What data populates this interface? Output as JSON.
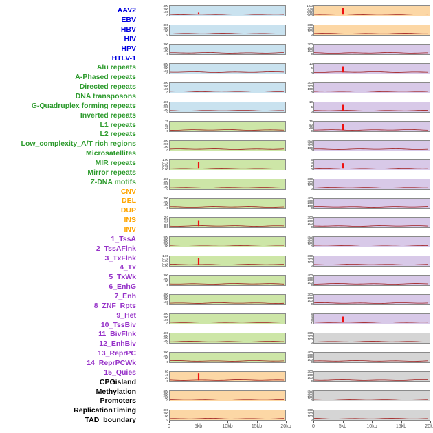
{
  "figure": {
    "groups": {
      "virus": {
        "label_color": "#0000e0",
        "strip_fill": "#c9e2ef"
      },
      "repeat": {
        "label_color": "#2e9b2e",
        "strip_fill": "#cde6a7"
      },
      "sv": {
        "label_color": "#ffa500",
        "strip_fill": "#fcd7a5"
      },
      "chromhmm": {
        "label_color": "#9632c8",
        "strip_fill": "#d8c9e8"
      },
      "other": {
        "label_color": "#000000",
        "strip_fill": "#d5d5d5"
      }
    },
    "line_colors": {
      "baseline": "#a02020",
      "spike": "#ee1111"
    }
  },
  "chart_data": {
    "type": "line",
    "description": "Grid of 44 per-feature profile strips (two columns of 22 rows). Each strip shows a dark-red profile line over a 0-20kb window; several features show a sharp red enrichment spike at 5kb.",
    "x_axis_ticks": [
      "0",
      "5kb",
      "10kb",
      "15kb",
      "20kb"
    ],
    "x_range_kb": [
      0,
      20
    ],
    "spike_position_kb": 5,
    "columns": 2,
    "rows_per_column": 22,
    "tracks": [
      {
        "name": "AAV2",
        "group": "virus",
        "column": 1,
        "row": 1,
        "y_ticks": [
          "300",
          "200",
          "100",
          "0"
        ],
        "spike": 0.35
      },
      {
        "name": "EBV",
        "group": "virus",
        "column": 1,
        "row": 2,
        "y_ticks": [
          "300",
          "200",
          "100",
          "0"
        ],
        "spike": 0
      },
      {
        "name": "HBV",
        "group": "virus",
        "column": 1,
        "row": 3,
        "y_ticks": [
          "300",
          "200",
          "100",
          "0"
        ],
        "spike": 0
      },
      {
        "name": "HIV",
        "group": "virus",
        "column": 1,
        "row": 4,
        "y_ticks": [
          "400",
          "300",
          "200",
          "100",
          "0"
        ],
        "spike": 0
      },
      {
        "name": "HPV",
        "group": "virus",
        "column": 1,
        "row": 5,
        "y_ticks": [
          "300",
          "200",
          "100",
          "0"
        ],
        "spike": 0
      },
      {
        "name": "HTLV-1",
        "group": "virus",
        "column": 1,
        "row": 6,
        "y_ticks": [
          "400",
          "300",
          "200",
          "100",
          "0"
        ],
        "spike": 0
      },
      {
        "name": "Alu repeats",
        "group": "repeat",
        "column": 1,
        "row": 7,
        "y_ticks": [
          "75",
          "50",
          "25",
          "0"
        ],
        "spike": 0
      },
      {
        "name": "A-Phased repeats",
        "group": "repeat",
        "column": 1,
        "row": 8,
        "y_ticks": [
          "300",
          "200",
          "100",
          "0"
        ],
        "spike": 0
      },
      {
        "name": "Directed repeats",
        "group": "repeat",
        "column": 1,
        "row": 9,
        "y_ticks": [
          "1.00",
          "0.75",
          "0.50",
          "0.25",
          "0.00"
        ],
        "spike": 0.85
      },
      {
        "name": "DNA transposons",
        "group": "repeat",
        "column": 1,
        "row": 10,
        "y_ticks": [
          "400",
          "300",
          "200",
          "100",
          "0"
        ],
        "spike": 0
      },
      {
        "name": "G-Quadruplex forming repeats",
        "group": "repeat",
        "column": 1,
        "row": 11,
        "y_ticks": [
          "300",
          "200",
          "100",
          "0"
        ],
        "spike": 0
      },
      {
        "name": "Inverted repeats",
        "group": "repeat",
        "column": 1,
        "row": 12,
        "y_ticks": [
          "2.0",
          "1.5",
          "1.0",
          "0.5",
          "0.0"
        ],
        "spike": 0.8
      },
      {
        "name": "L1 repeats",
        "group": "repeat",
        "column": 1,
        "row": 13,
        "y_ticks": [
          "500",
          "400",
          "300",
          "200",
          "100"
        ],
        "spike": 0
      },
      {
        "name": "L2 repeats",
        "group": "repeat",
        "column": 1,
        "row": 14,
        "y_ticks": [
          "1.00",
          "0.75",
          "0.50",
          "0.25",
          "0.00"
        ],
        "spike": 0.85
      },
      {
        "name": "Low_complexity_A/T rich regions",
        "group": "repeat",
        "column": 1,
        "row": 15,
        "y_ticks": [
          "300",
          "200",
          "100",
          "0"
        ],
        "spike": 0
      },
      {
        "name": "Microsatellites",
        "group": "repeat",
        "column": 1,
        "row": 16,
        "y_ticks": [
          "400",
          "300",
          "200",
          "100",
          "0"
        ],
        "spike": 0
      },
      {
        "name": "MIR repeats",
        "group": "repeat",
        "column": 1,
        "row": 17,
        "y_ticks": [
          "300",
          "200",
          "100",
          "0"
        ],
        "spike": 0
      },
      {
        "name": "Mirror repeats",
        "group": "repeat",
        "column": 1,
        "row": 18,
        "y_ticks": [
          "400",
          "300",
          "200",
          "100",
          "0"
        ],
        "spike": 0
      },
      {
        "name": "Z-DNA motifs",
        "group": "repeat",
        "column": 1,
        "row": 19,
        "y_ticks": [
          "300",
          "200",
          "100",
          "0"
        ],
        "spike": 0
      },
      {
        "name": "CNV",
        "group": "sv",
        "column": 1,
        "row": 20,
        "y_ticks": [
          "60",
          "40",
          "20",
          "0"
        ],
        "spike": 0.9
      },
      {
        "name": "DEL",
        "group": "sv",
        "column": 1,
        "row": 21,
        "y_ticks": [
          "400",
          "300",
          "200",
          "100",
          "0"
        ],
        "spike": 0
      },
      {
        "name": "DUP",
        "group": "sv",
        "column": 1,
        "row": 22,
        "y_ticks": [
          "300",
          "200",
          "100",
          "0"
        ],
        "spike": 0
      },
      {
        "name": "INS",
        "group": "sv",
        "column": 2,
        "row": 1,
        "y_ticks": [
          "1.00",
          "0.75",
          "0.50",
          "0.25",
          "0.00"
        ],
        "spike": 0.85
      },
      {
        "name": "INV",
        "group": "sv",
        "column": 2,
        "row": 2,
        "y_ticks": [
          "300",
          "200",
          "100",
          "0"
        ],
        "spike": 0
      },
      {
        "name": "1_TssA",
        "group": "chromhmm",
        "column": 2,
        "row": 3,
        "y_ticks": [
          "300",
          "200",
          "100",
          "0"
        ],
        "spike": 0
      },
      {
        "name": "2_TssAFlnk",
        "group": "chromhmm",
        "column": 2,
        "row": 4,
        "y_ticks": [
          "10",
          "5",
          "0"
        ],
        "spike": 0.8
      },
      {
        "name": "3_TxFlnk",
        "group": "chromhmm",
        "column": 2,
        "row": 5,
        "y_ticks": [
          "300",
          "200",
          "100",
          "0"
        ],
        "spike": 0
      },
      {
        "name": "4_Tx",
        "group": "chromhmm",
        "column": 2,
        "row": 6,
        "y_ticks": [
          "10",
          "5",
          "0"
        ],
        "spike": 0.8
      },
      {
        "name": "5_TxWk",
        "group": "chromhmm",
        "column": 2,
        "row": 7,
        "y_ticks": [
          "75",
          "50",
          "25",
          "0"
        ],
        "spike": 0.8
      },
      {
        "name": "6_EnhG",
        "group": "chromhmm",
        "column": 2,
        "row": 8,
        "y_ticks": [
          "400",
          "300",
          "200",
          "100",
          "0"
        ],
        "spike": 0
      },
      {
        "name": "7_Enh",
        "group": "chromhmm",
        "column": 2,
        "row": 9,
        "y_ticks": [
          "6",
          "4",
          "2",
          "0"
        ],
        "spike": 0.75
      },
      {
        "name": "8_ZNF_Rpts",
        "group": "chromhmm",
        "column": 2,
        "row": 10,
        "y_ticks": [
          "300",
          "200",
          "100",
          "0"
        ],
        "spike": 0
      },
      {
        "name": "9_Het",
        "group": "chromhmm",
        "column": 2,
        "row": 11,
        "y_ticks": [
          "400",
          "300",
          "200",
          "100",
          "0"
        ],
        "spike": 0
      },
      {
        "name": "10_TssBiv",
        "group": "chromhmm",
        "column": 2,
        "row": 12,
        "y_ticks": [
          "300",
          "200",
          "100",
          "0"
        ],
        "spike": 0
      },
      {
        "name": "11_BivFlnk",
        "group": "chromhmm",
        "column": 2,
        "row": 13,
        "y_ticks": [
          "400",
          "300",
          "200",
          "100",
          "0"
        ],
        "spike": 0
      },
      {
        "name": "12_EnhBiv",
        "group": "chromhmm",
        "column": 2,
        "row": 14,
        "y_ticks": [
          "300",
          "200",
          "100",
          "0"
        ],
        "spike": 0
      },
      {
        "name": "13_ReprPC",
        "group": "chromhmm",
        "column": 2,
        "row": 15,
        "y_ticks": [
          "400",
          "300",
          "200",
          "100",
          "0"
        ],
        "spike": 0
      },
      {
        "name": "14_ReprPCWk",
        "group": "chromhmm",
        "column": 2,
        "row": 16,
        "y_ticks": [
          "300",
          "200",
          "100",
          "0"
        ],
        "spike": 0
      },
      {
        "name": "15_Quies",
        "group": "chromhmm",
        "column": 2,
        "row": 17,
        "y_ticks": [
          "5",
          "4",
          "3",
          "2",
          "1"
        ],
        "spike": 0.8
      },
      {
        "name": "CPGisland",
        "group": "other",
        "column": 2,
        "row": 18,
        "y_ticks": [
          "300",
          "200",
          "100",
          "0"
        ],
        "spike": 0
      },
      {
        "name": "Methylation",
        "group": "other",
        "column": 2,
        "row": 19,
        "y_ticks": [
          "400",
          "300",
          "200",
          "100",
          "0"
        ],
        "spike": 0
      },
      {
        "name": "Promoters",
        "group": "other",
        "column": 2,
        "row": 20,
        "y_ticks": [
          "300",
          "200",
          "100",
          "0"
        ],
        "spike": 0
      },
      {
        "name": "ReplicationTiming",
        "group": "other",
        "column": 2,
        "row": 21,
        "y_ticks": [
          "400",
          "300",
          "200",
          "100",
          "0"
        ],
        "spike": 0
      },
      {
        "name": "TAD_boundary",
        "group": "other",
        "column": 2,
        "row": 22,
        "y_ticks": [
          "300",
          "200",
          "100",
          "0"
        ],
        "spike": 0
      }
    ]
  }
}
